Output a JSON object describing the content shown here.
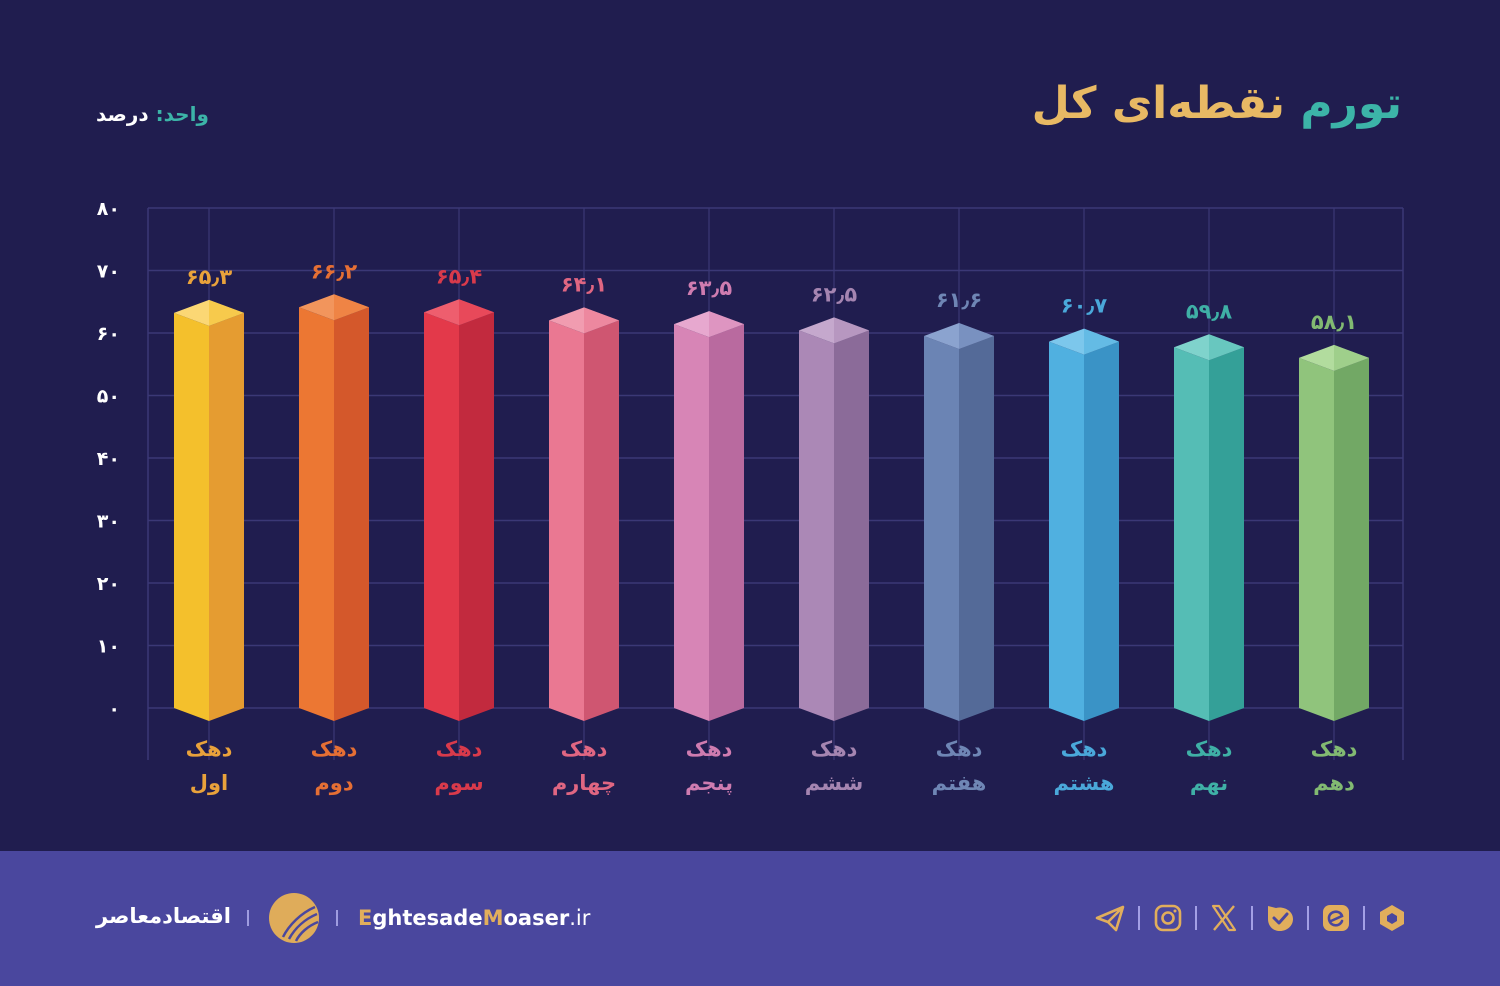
{
  "header": {
    "title_part1": "تورم",
    "title_part2": "نقطه‌ای کل",
    "unit_label": "واحد:",
    "unit_value": "درصد"
  },
  "colors": {
    "background": "#201d4f",
    "footer": "#4a479e",
    "accent_teal": "#3cb4a8",
    "accent_gold": "#e8b964",
    "grid": "#3b3876"
  },
  "chart_data": {
    "type": "bar",
    "title": "تورم نقطه‌ای کل",
    "ylabel": "واحد: درصد",
    "xlabel": "",
    "ylim": [
      0,
      80
    ],
    "y_ticks": [
      "۰",
      "۱۰",
      "۲۰",
      "۳۰",
      "۴۰",
      "۵۰",
      "۶۰",
      "۷۰",
      "۸۰"
    ],
    "y_tick_values": [
      0,
      10,
      20,
      30,
      40,
      50,
      60,
      70,
      80
    ],
    "grid": true,
    "legend": null,
    "categories": [
      "دهک اول",
      "دهک دوم",
      "دهک سوم",
      "دهک چهارم",
      "دهک پنجم",
      "دهک ششم",
      "دهک هفتم",
      "دهک هشتم",
      "دهک نهم",
      "دهک دهم"
    ],
    "values": [
      65.3,
      66.2,
      65.4,
      64.1,
      63.5,
      62.5,
      61.6,
      60.7,
      59.8,
      58.1
    ],
    "value_labels": [
      "۶۵٫۳",
      "۶۶٫۲",
      "۶۵٫۴",
      "۶۴٫۱",
      "۶۳٫۵",
      "۶۲٫۵",
      "۶۱٫۶",
      "۶۰٫۷",
      "۵۹٫۸",
      "۵۸٫۱"
    ],
    "bars": [
      {
        "line1": "دهک",
        "line2": "اول",
        "value": 65.3,
        "label": "۶۵٫۳",
        "front": "#f4c02c",
        "side": "#e59c31",
        "top": "#fbd774",
        "text": "#e9a23b"
      },
      {
        "line1": "دهک",
        "line2": "دوم",
        "value": 66.2,
        "label": "۶۶٫۲",
        "front": "#ec7733",
        "side": "#d4582b",
        "top": "#f2955c",
        "text": "#e56f34"
      },
      {
        "line1": "دهک",
        "line2": "سوم",
        "value": 65.4,
        "label": "۶۵٫۴",
        "front": "#e3394a",
        "side": "#c22a3e",
        "top": "#ee5e6e",
        "text": "#d93a4b"
      },
      {
        "line1": "دهک",
        "line2": "چهارم",
        "value": 64.1,
        "label": "۶۴٫۱",
        "front": "#ea7892",
        "side": "#cf5671",
        "top": "#f19cb0",
        "text": "#e06682"
      },
      {
        "line1": "دهک",
        "line2": "پنجم",
        "value": 63.5,
        "label": "۶۳٫۵",
        "front": "#d785b6",
        "side": "#b96a9f",
        "top": "#e7a8cf",
        "text": "#cf7cb0"
      },
      {
        "line1": "دهک",
        "line2": "ششم",
        "value": 62.5,
        "label": "۶۲٫۵",
        "front": "#ab88b6",
        "side": "#8b6b99",
        "top": "#c5a8cd",
        "text": "#a585b1"
      },
      {
        "line1": "دهک",
        "line2": "هفتم",
        "value": 61.6,
        "label": "۶۱٫۶",
        "front": "#6b84b4",
        "side": "#546a98",
        "top": "#8ba3cf",
        "text": "#6f86b5"
      },
      {
        "line1": "دهک",
        "line2": "هشتم",
        "value": 60.7,
        "label": "۶۰٫۷",
        "front": "#50b0e0",
        "side": "#3a93c6",
        "top": "#7cc7ec",
        "text": "#4aa8da"
      },
      {
        "line1": "دهک",
        "line2": "نهم",
        "value": 59.8,
        "label": "۵۹٫۸",
        "front": "#55bdb5",
        "side": "#34a098",
        "top": "#7fd3cc",
        "text": "#3fb0a6"
      },
      {
        "line1": "دهک",
        "line2": "دهم",
        "value": 58.1,
        "label": "۵۸٫۱",
        "front": "#90c47c",
        "side": "#72a865",
        "top": "#b2dc9e",
        "text": "#82ba72"
      }
    ]
  },
  "footer": {
    "brand_name": "اقتصادمعاصر",
    "site_part1": "E",
    "site_part2": "ghtesade",
    "site_part3": "M",
    "site_part4": "oaser",
    "site_part5": ".ir",
    "social_icons": [
      "telegram-icon",
      "instagram-icon",
      "x-icon",
      "bale-icon",
      "eitaa-icon",
      "rubika-icon"
    ]
  }
}
